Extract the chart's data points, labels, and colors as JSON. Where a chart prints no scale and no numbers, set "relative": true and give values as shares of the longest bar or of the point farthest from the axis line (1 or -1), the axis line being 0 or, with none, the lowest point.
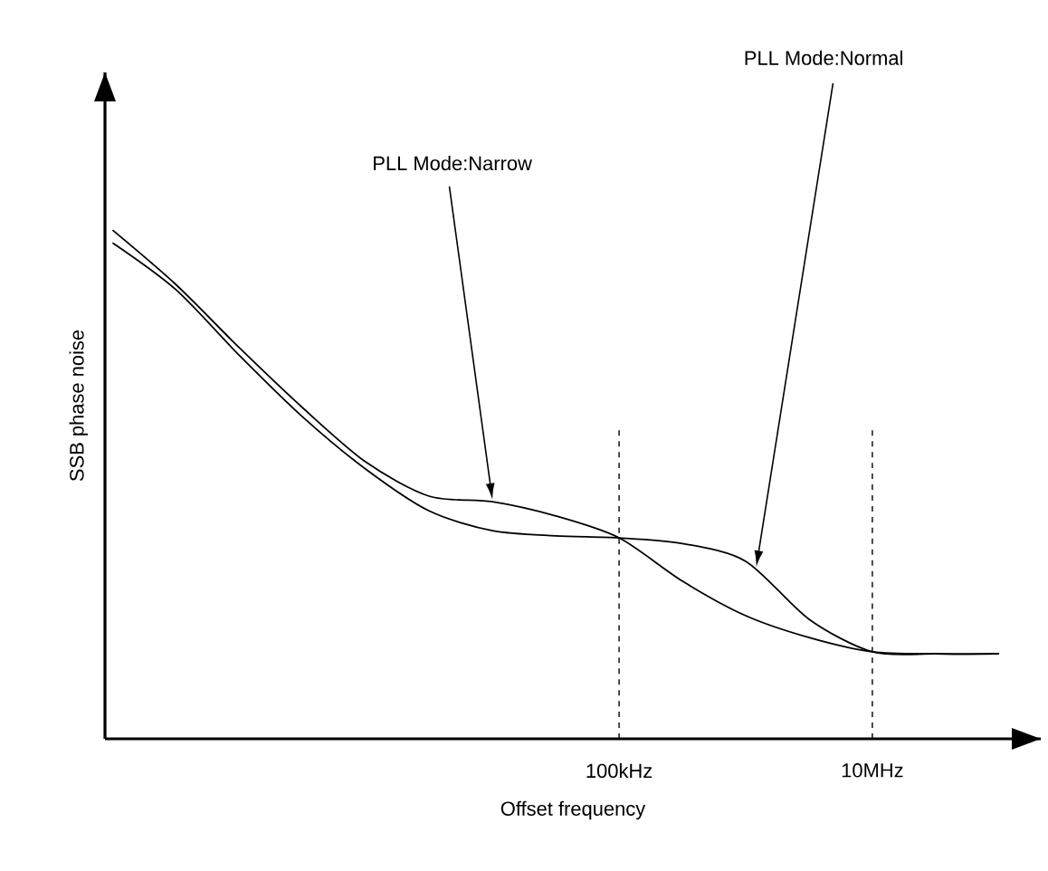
{
  "chart_data": {
    "type": "line",
    "relative": true,
    "xlabel": "Offset frequency",
    "ylabel": "SSB phase noise",
    "categories": [
      null,
      null,
      null,
      null,
      null,
      null,
      null,
      null,
      "100kHz",
      null,
      null,
      null,
      "10MHz",
      null,
      null
    ],
    "series": [
      {
        "color": "#000000",
        "values": [
          1.0,
          0.893,
          0.769,
          0.651,
          0.544,
          0.477,
          0.466,
          0.438,
          0.395,
          0.31,
          0.242,
          0.199,
          0.171,
          0.167,
          0.167
        ]
      },
      {
        "color": "#000000",
        "values": [
          0.975,
          0.883,
          0.754,
          0.633,
          0.53,
          0.448,
          0.409,
          0.399,
          0.395,
          0.384,
          0.349,
          0.235,
          0.171,
          0.167,
          0.167
        ]
      }
    ],
    "annotations": [
      "PLL Mode:Narrow",
      "PLL Mode:Normal"
    ],
    "ref_lines": [
      {
        "axis": "x",
        "value": "100kHz",
        "line_style": "dashed",
        "color": "#000000"
      },
      {
        "axis": "x",
        "value": "10MHz",
        "line_style": "dashed",
        "color": "#000000"
      }
    ],
    "grid": false,
    "marker": "none",
    "line_style": "solid"
  }
}
